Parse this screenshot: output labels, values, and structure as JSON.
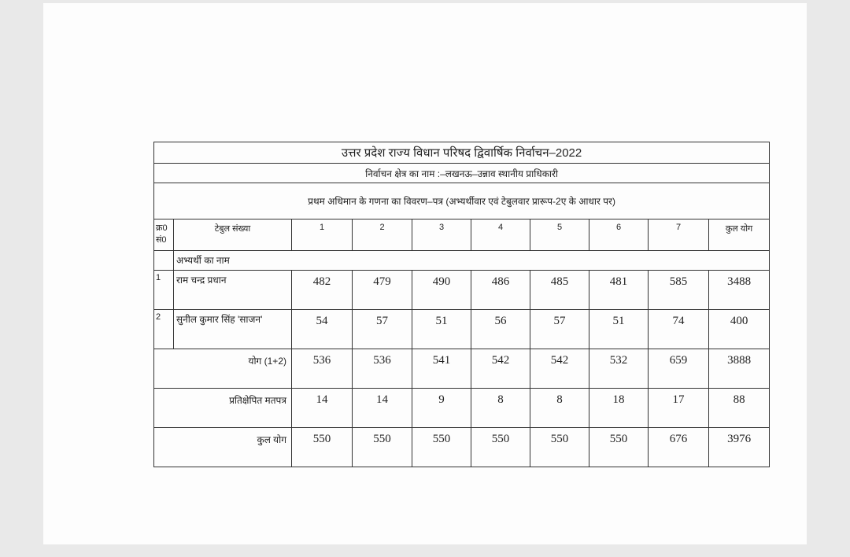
{
  "title": "उत्तर प्रदेश राज्य विधान परिषद द्विवार्षिक निर्वाचन–2022",
  "constituency": "निर्वाचन क्षेत्र का नाम :–लखनऊ–उन्नाव स्थानीय प्राधिकारी",
  "description": "प्रथम अधिमान के गणना का विवरण–पत्र (अभ्यर्थीवार एवं टेबुलवार प्रारूप-2ए के आधार पर)",
  "header": {
    "serial": "क्र0 सं0",
    "table_no": "टेबुल संख्या",
    "tables": [
      "1",
      "2",
      "3",
      "4",
      "5",
      "6",
      "7"
    ],
    "total": "कुल योग"
  },
  "candidate_label": "अभ्यर्थी का नाम",
  "candidates": [
    {
      "serial": "1",
      "name": "राम चन्द्र प्रधान",
      "values": [
        "482",
        "479",
        "490",
        "486",
        "485",
        "481",
        "585"
      ],
      "total": "3488"
    },
    {
      "serial": "2",
      "name": "सुनील कुमार सिंह 'साजन'",
      "values": [
        "54",
        "57",
        "51",
        "56",
        "57",
        "51",
        "74"
      ],
      "total": "400"
    }
  ],
  "summary_rows": [
    {
      "label": "योग (1+2)",
      "values": [
        "536",
        "536",
        "541",
        "542",
        "542",
        "532",
        "659"
      ],
      "total": "3888"
    },
    {
      "label": "प्रतिक्षेपित मतपत्र",
      "values": [
        "14",
        "14",
        "9",
        "8",
        "8",
        "18",
        "17"
      ],
      "total": "88"
    },
    {
      "label": "कुल योग",
      "values": [
        "550",
        "550",
        "550",
        "550",
        "550",
        "550",
        "676"
      ],
      "total": "3976"
    }
  ]
}
